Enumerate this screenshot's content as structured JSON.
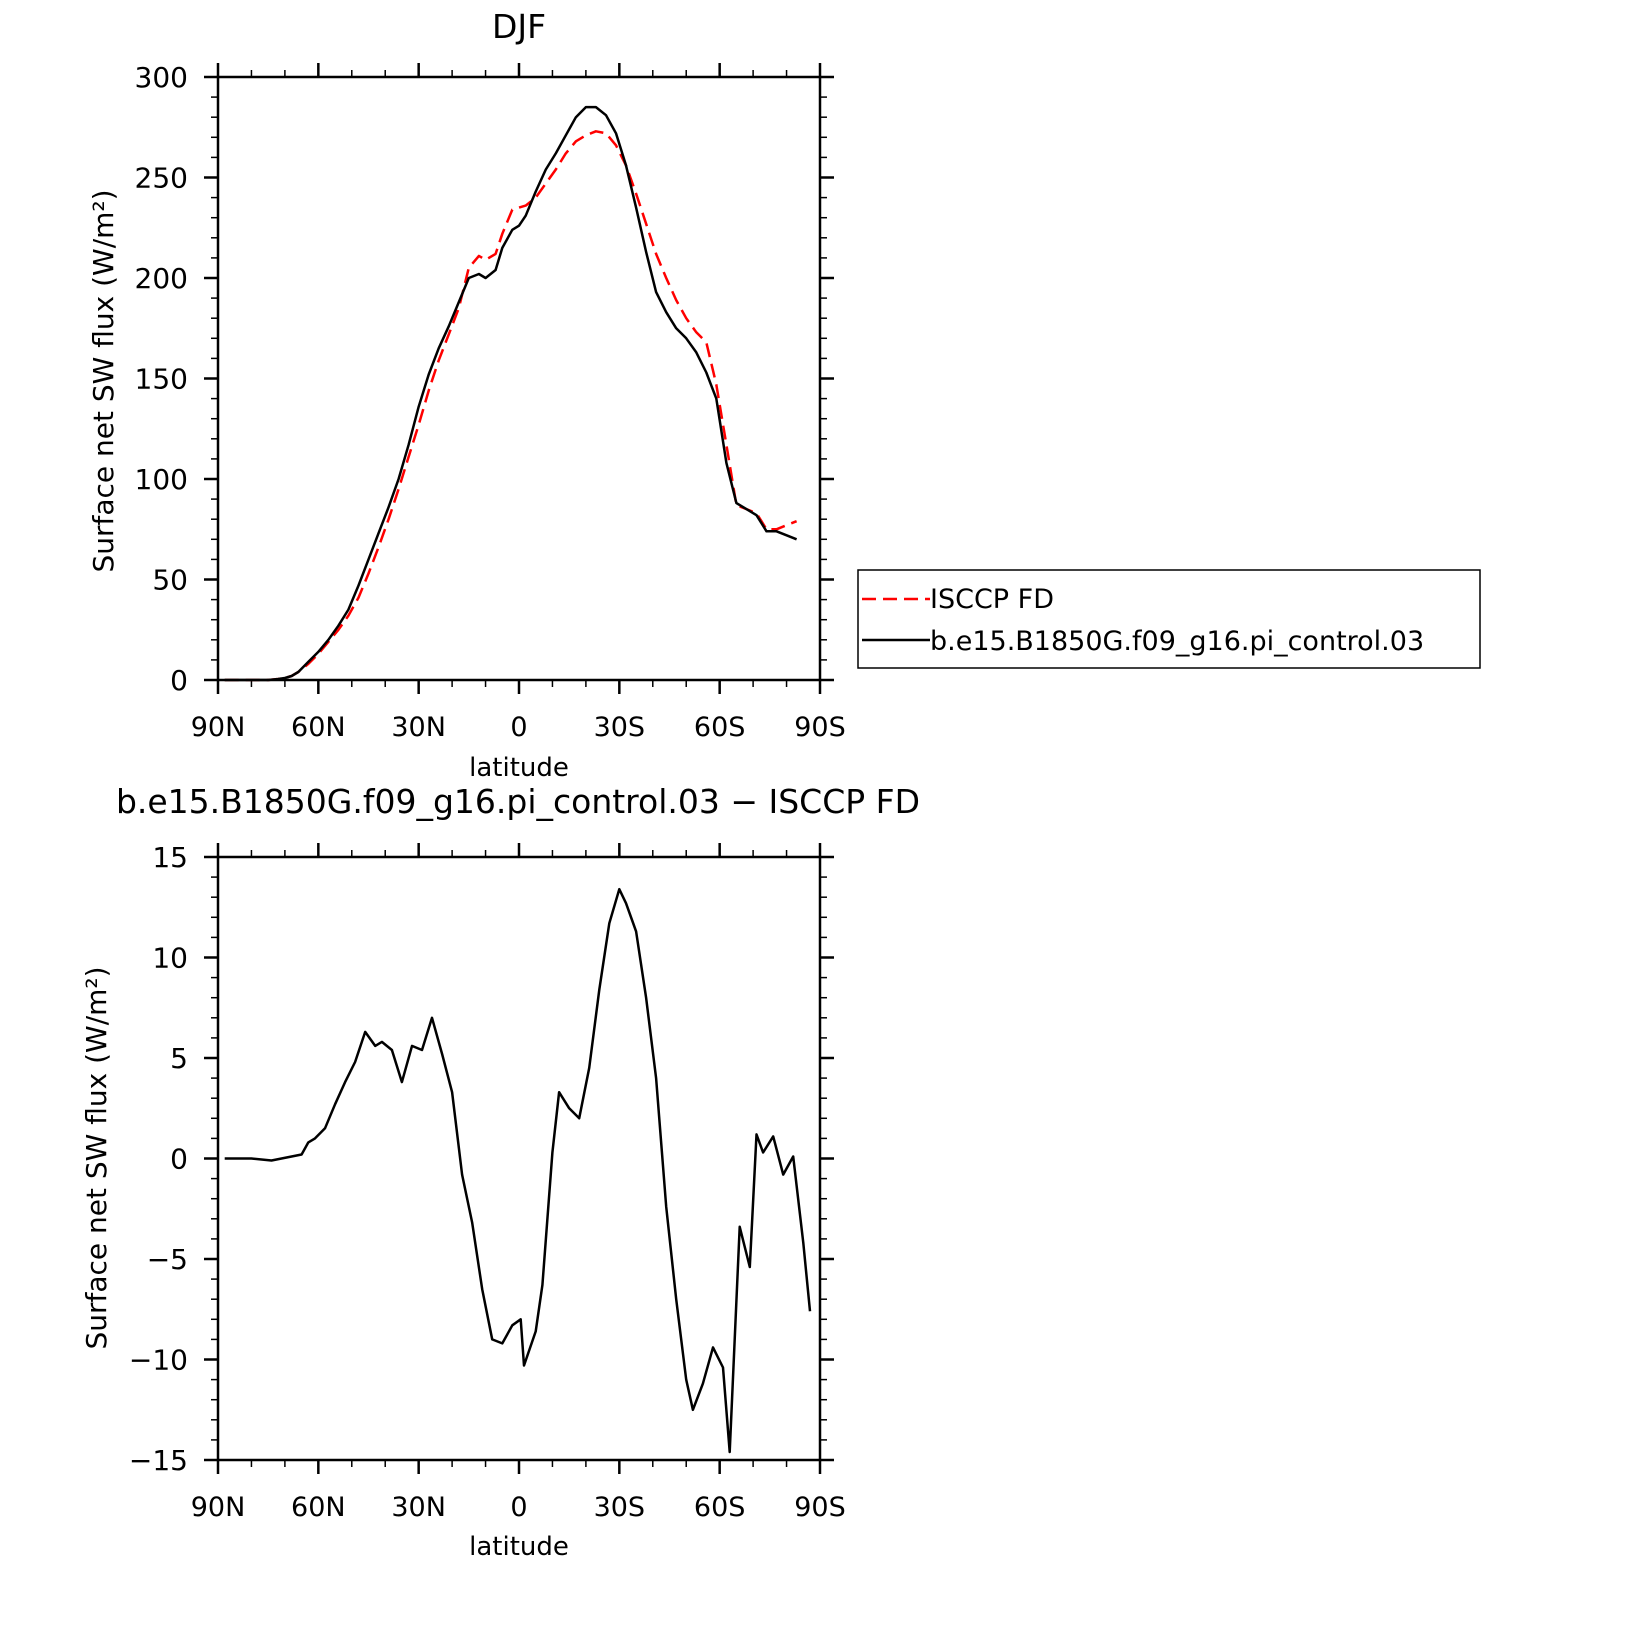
{
  "chart_data": [
    {
      "type": "line",
      "title": "DJF",
      "xlabel": "latitude",
      "ylabel": "Surface net SW flux (W/m²)",
      "x_ticks": [
        "90N",
        "60N",
        "30N",
        "0",
        "30S",
        "60S",
        "90S"
      ],
      "y_ticks": [
        "0",
        "50",
        "100",
        "150",
        "200",
        "250",
        "300"
      ],
      "xlim": [
        90,
        -90
      ],
      "ylim": [
        0,
        300
      ],
      "legend": {
        "placement": "right-outside",
        "entries": [
          "ISCCP FD",
          "b.e15.B1850G.f09_g16.pi_control.03"
        ]
      },
      "series": [
        {
          "name": "ISCCP FD",
          "color": "#ff0000",
          "dash": "dashed",
          "points": [
            [
              88,
              0
            ],
            [
              80,
              0
            ],
            [
              75,
              0
            ],
            [
              72,
              0.5
            ],
            [
              70,
              1
            ],
            [
              68,
              2
            ],
            [
              66,
              4
            ],
            [
              63,
              8
            ],
            [
              60,
              13
            ],
            [
              57,
              19
            ],
            [
              54,
              25
            ],
            [
              51,
              32
            ],
            [
              48,
              41
            ],
            [
              45,
              53
            ],
            [
              42,
              66
            ],
            [
              39,
              80
            ],
            [
              36,
              95
            ],
            [
              33,
              111
            ],
            [
              30,
              127
            ],
            [
              27,
              144
            ],
            [
              24,
              159
            ],
            [
              21,
              172
            ],
            [
              18,
              185
            ],
            [
              15,
              205
            ],
            [
              12,
              211
            ],
            [
              10,
              209
            ],
            [
              7,
              212
            ],
            [
              5,
              222
            ],
            [
              2,
              234
            ],
            [
              0,
              235
            ],
            [
              -2,
              236
            ],
            [
              -5,
              240
            ],
            [
              -8,
              247
            ],
            [
              -11,
              254
            ],
            [
              -14,
              262
            ],
            [
              -17,
              268
            ],
            [
              -20,
              271
            ],
            [
              -23,
              273
            ],
            [
              -26,
              272
            ],
            [
              -29,
              266
            ],
            [
              -32,
              256
            ],
            [
              -35,
              242
            ],
            [
              -38,
              227
            ],
            [
              -41,
              212
            ],
            [
              -44,
              200
            ],
            [
              -47,
              189
            ],
            [
              -50,
              180
            ],
            [
              -53,
              173
            ],
            [
              -56,
              168
            ],
            [
              -59,
              147
            ],
            [
              -62,
              117
            ],
            [
              -65,
              87
            ],
            [
              -68,
              85
            ],
            [
              -71,
              83
            ],
            [
              -74,
              75
            ],
            [
              -77,
              75
            ],
            [
              -80,
              77
            ],
            [
              -83,
              79
            ]
          ]
        },
        {
          "name": "b.e15.B1850G.f09_g16.pi_control.03",
          "color": "#000000",
          "dash": "solid",
          "points": [
            [
              88,
              0
            ],
            [
              80,
              0
            ],
            [
              75,
              0
            ],
            [
              72,
              0.5
            ],
            [
              70,
              1
            ],
            [
              68,
              2
            ],
            [
              66,
              4
            ],
            [
              63,
              9
            ],
            [
              60,
              14
            ],
            [
              57,
              20
            ],
            [
              54,
              27
            ],
            [
              51,
              35
            ],
            [
              48,
              47
            ],
            [
              45,
              60
            ],
            [
              42,
              73
            ],
            [
              39,
              86
            ],
            [
              36,
              100
            ],
            [
              33,
              117
            ],
            [
              30,
              136
            ],
            [
              27,
              152
            ],
            [
              24,
              165
            ],
            [
              21,
              176
            ],
            [
              18,
              188
            ],
            [
              15,
              200
            ],
            [
              12,
              202
            ],
            [
              10,
              200
            ],
            [
              7,
              204
            ],
            [
              5,
              215
            ],
            [
              2,
              224
            ],
            [
              0,
              226
            ],
            [
              -2,
              231
            ],
            [
              -5,
              243
            ],
            [
              -8,
              254
            ],
            [
              -11,
              262
            ],
            [
              -14,
              271
            ],
            [
              -17,
              280
            ],
            [
              -20,
              285
            ],
            [
              -23,
              285
            ],
            [
              -26,
              281
            ],
            [
              -29,
              272
            ],
            [
              -32,
              256
            ],
            [
              -35,
              235
            ],
            [
              -38,
              213
            ],
            [
              -41,
              193
            ],
            [
              -44,
              183
            ],
            [
              -47,
              175
            ],
            [
              -50,
              170
            ],
            [
              -53,
              163
            ],
            [
              -56,
              153
            ],
            [
              -59,
              140
            ],
            [
              -62,
              108
            ],
            [
              -65,
              88
            ],
            [
              -68,
              85
            ],
            [
              -71,
              82
            ],
            [
              -74,
              74
            ],
            [
              -77,
              74
            ],
            [
              -80,
              72
            ],
            [
              -83,
              70
            ]
          ]
        }
      ]
    },
    {
      "type": "line",
      "title": "b.e15.B1850G.f09_g16.pi_control.03 − ISCCP FD",
      "xlabel": "latitude",
      "ylabel": "Surface net SW flux (W/m²)",
      "x_ticks": [
        "90N",
        "60N",
        "30N",
        "0",
        "30S",
        "60S",
        "90S"
      ],
      "y_ticks": [
        "−15",
        "−10",
        "−5",
        "0",
        "5",
        "10",
        "15"
      ],
      "xlim": [
        90,
        -90
      ],
      "ylim": [
        -15,
        15
      ],
      "series": [
        {
          "color": "#000000",
          "dash": "solid",
          "points": [
            [
              88,
              0
            ],
            [
              80,
              0
            ],
            [
              74,
              -0.1
            ],
            [
              68,
              0.1
            ],
            [
              65,
              0.2
            ],
            [
              63,
              0.8
            ],
            [
              61,
              1.0
            ],
            [
              58,
              1.5
            ],
            [
              55,
              2.7
            ],
            [
              52,
              3.8
            ],
            [
              49,
              4.8
            ],
            [
              46,
              6.3
            ],
            [
              43,
              5.6
            ],
            [
              41,
              5.8
            ],
            [
              38,
              5.4
            ],
            [
              35,
              3.8
            ],
            [
              32,
              5.6
            ],
            [
              29,
              5.4
            ],
            [
              26,
              7.0
            ],
            [
              23,
              5.2
            ],
            [
              20,
              3.3
            ],
            [
              17,
              -0.8
            ],
            [
              14,
              -3.2
            ],
            [
              11,
              -6.5
            ],
            [
              8,
              -9.0
            ],
            [
              5,
              -9.2
            ],
            [
              2,
              -8.3
            ],
            [
              -0.5,
              -8.0
            ],
            [
              -1.5,
              -10.3
            ],
            [
              -5,
              -8.6
            ],
            [
              -7,
              -6.3
            ],
            [
              -10,
              0.3
            ],
            [
              -12,
              3.3
            ],
            [
              -15,
              2.5
            ],
            [
              -18,
              2.0
            ],
            [
              -21,
              4.5
            ],
            [
              -24,
              8.4
            ],
            [
              -27,
              11.7
            ],
            [
              -30,
              13.4
            ],
            [
              -32,
              12.7
            ],
            [
              -35,
              11.3
            ],
            [
              -38,
              8.0
            ],
            [
              -41,
              4.0
            ],
            [
              -44,
              -2.4
            ],
            [
              -47,
              -7.0
            ],
            [
              -50,
              -11.0
            ],
            [
              -52,
              -12.5
            ],
            [
              -55,
              -11.2
            ],
            [
              -58,
              -9.4
            ],
            [
              -61,
              -10.4
            ],
            [
              -63,
              -14.6
            ],
            [
              -66,
              -3.4
            ],
            [
              -69,
              -5.4
            ],
            [
              -71,
              1.2
            ],
            [
              -73,
              0.3
            ],
            [
              -76,
              1.1
            ],
            [
              -79,
              -0.8
            ],
            [
              -82,
              0.1
            ],
            [
              -85,
              -4.2
            ],
            [
              -87,
              -7.6
            ]
          ]
        }
      ]
    }
  ]
}
